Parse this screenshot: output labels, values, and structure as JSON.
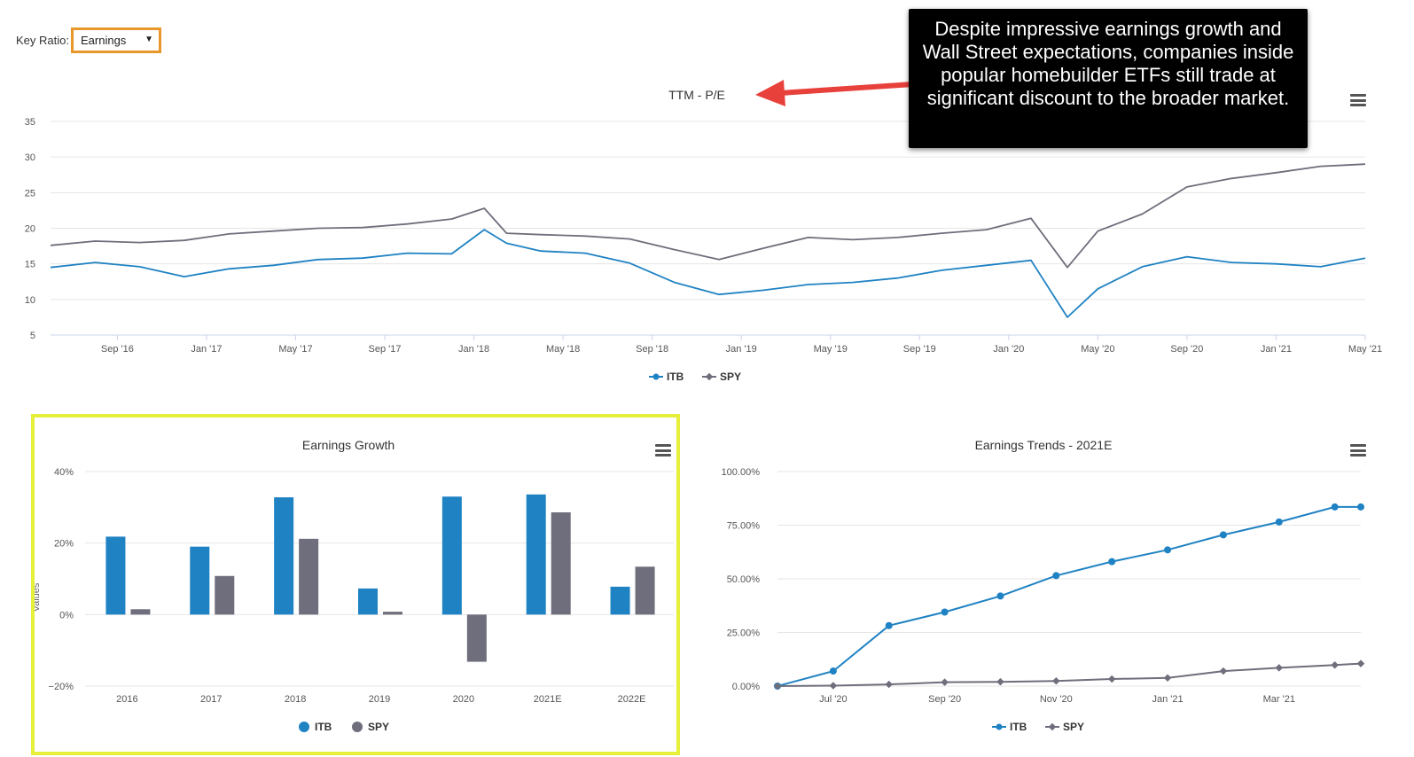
{
  "controls": {
    "key_ratio_label": "Key Ratio:",
    "key_ratio_value": "Earnings"
  },
  "callout": {
    "text": "Despite impressive earnings growth and Wall Street expectations, companies inside popular homebuilder ETFs still trade at significant discount to the broader market."
  },
  "colors": {
    "itb": "#1f82c3",
    "spy": "#6e6e7c",
    "highlight": "#e6f03a",
    "callout_arrow": "#e8413c",
    "select_border": "#e8972b"
  },
  "icons": [
    "hamburger-menu-icon",
    "chevron-down-icon",
    "arrow-left-icon"
  ],
  "chart_data": [
    {
      "type": "line",
      "title": "TTM - P/E",
      "x_ticks": [
        "Sep '16",
        "Jan '17",
        "May '17",
        "Sep '17",
        "Jan '18",
        "May '18",
        "Sep '18",
        "Jan '19",
        "May '19",
        "Sep '19",
        "Jan '20",
        "May '20",
        "Sep '20",
        "Jan '21",
        "May '21"
      ],
      "x_dates": [
        "2016-06-01",
        "2016-08-01",
        "2016-10-01",
        "2016-12-01",
        "2017-02-01",
        "2017-04-01",
        "2017-06-01",
        "2017-08-01",
        "2017-10-01",
        "2017-12-01",
        "2018-01-15",
        "2018-02-15",
        "2018-04-01",
        "2018-06-01",
        "2018-08-01",
        "2018-10-01",
        "2018-12-01",
        "2019-02-01",
        "2019-04-01",
        "2019-06-01",
        "2019-08-01",
        "2019-10-01",
        "2019-12-01",
        "2020-02-01",
        "2020-03-20",
        "2020-05-01",
        "2020-07-01",
        "2020-09-01",
        "2020-11-01",
        "2021-01-01",
        "2021-03-01",
        "2021-05-01"
      ],
      "y_ticks": [
        5,
        10,
        15,
        20,
        25,
        30,
        35
      ],
      "ylim": [
        5,
        35
      ],
      "grid": true,
      "legend_position": "bottom-center",
      "series": [
        {
          "name": "ITB",
          "values": [
            14.5,
            15.2,
            14.6,
            13.2,
            14.3,
            14.8,
            15.6,
            15.8,
            16.5,
            16.4,
            19.8,
            17.9,
            16.8,
            16.5,
            15.1,
            12.4,
            10.7,
            11.3,
            12.1,
            12.4,
            13.0,
            14.1,
            14.8,
            15.5,
            7.5,
            11.5,
            14.6,
            16.0,
            15.2,
            15.0,
            14.6,
            15.8
          ]
        },
        {
          "name": "SPY",
          "values": [
            17.6,
            18.2,
            18.0,
            18.3,
            19.2,
            19.6,
            20.0,
            20.1,
            20.6,
            21.3,
            22.8,
            19.3,
            19.1,
            18.9,
            18.5,
            17.0,
            15.6,
            17.2,
            18.7,
            18.4,
            18.7,
            19.3,
            19.8,
            21.4,
            14.5,
            19.6,
            22.0,
            25.8,
            27.0,
            27.8,
            28.7,
            29.0
          ]
        }
      ]
    },
    {
      "type": "bar",
      "title": "Earnings Growth",
      "ylabel": "Values",
      "categories": [
        "2016",
        "2017",
        "2018",
        "2019",
        "2020",
        "2021E",
        "2022E"
      ],
      "y_ticks": [
        "−20%",
        "0%",
        "20%",
        "40%"
      ],
      "ylim": [
        -20,
        40
      ],
      "grid": true,
      "legend_position": "bottom-center",
      "series": [
        {
          "name": "ITB",
          "values": [
            21.8,
            19.0,
            32.8,
            7.3,
            33.0,
            33.6,
            7.8
          ]
        },
        {
          "name": "SPY",
          "values": [
            1.5,
            10.8,
            21.2,
            0.8,
            -13.2,
            28.6,
            13.4
          ]
        }
      ]
    },
    {
      "type": "line",
      "title": "Earnings Trends - 2021E",
      "x_ticks": [
        "Jul '20",
        "Sep '20",
        "Nov '20",
        "Jan '21",
        "Mar '21"
      ],
      "y_ticks": [
        "0.00%",
        "25.00%",
        "50.00%",
        "75.00%",
        "100.00%"
      ],
      "ylim": [
        0,
        100
      ],
      "grid": true,
      "legend_position": "bottom-center",
      "x_dates": [
        "2020-06-01",
        "2020-07-01",
        "2020-08-01",
        "2020-09-01",
        "2020-10-01",
        "2020-11-01",
        "2020-12-01",
        "2021-01-01",
        "2021-02-01",
        "2021-03-01",
        "2021-04-01",
        "2021-04-15"
      ],
      "series": [
        {
          "name": "ITB",
          "values": [
            0.0,
            7.0,
            28.2,
            34.5,
            42.0,
            51.5,
            58.0,
            63.5,
            70.5,
            76.5,
            83.5,
            83.5
          ]
        },
        {
          "name": "SPY",
          "values": [
            0.0,
            0.2,
            0.8,
            1.8,
            2.0,
            2.4,
            3.3,
            3.8,
            7.0,
            8.5,
            9.8,
            10.5
          ]
        }
      ]
    }
  ]
}
